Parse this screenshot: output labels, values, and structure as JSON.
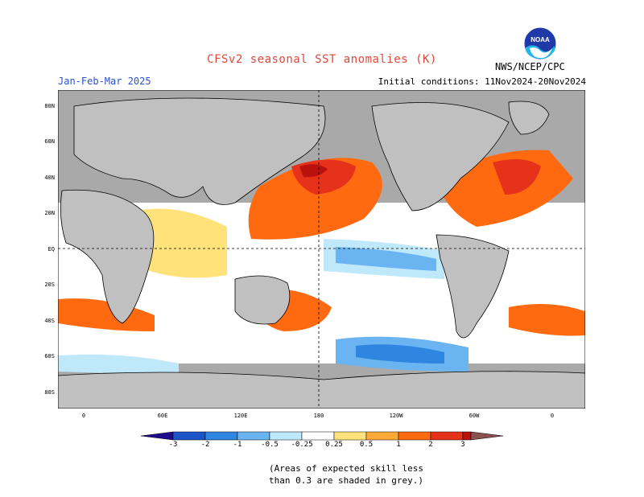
{
  "title": "CFSv2 seasonal SST anomalies (K)",
  "season": "Jan-Feb-Mar 2025",
  "initial_conditions": "Initial conditions: 11Nov2024-20Nov2024",
  "agency": "NWS/NCEP/CPC",
  "logo_text": "NOAA",
  "lat_labels": [
    "80N",
    "60N",
    "40N",
    "20N",
    "EQ",
    "20S",
    "40S",
    "60S",
    "80S"
  ],
  "lon_labels": [
    "0",
    "60E",
    "120E",
    "180",
    "120W",
    "60W",
    "0"
  ],
  "colorbar": {
    "labels": [
      "-3",
      "-2",
      "-1",
      "-0.5",
      "-0.25",
      "0.25",
      "0.5",
      "1",
      "2",
      "3"
    ],
    "colors": [
      "#1e0a8c",
      "#1c54c8",
      "#2f86e0",
      "#6bb4f2",
      "#bfe9fb",
      "#ffffff",
      "#ffe27a",
      "#ffaa36",
      "#ff6a10",
      "#e6311b",
      "#b9120e",
      "#8b5050"
    ]
  },
  "note": [
    "(Areas of expected skill less",
    "than 0.3 are shaded in grey.)"
  ],
  "colors": {
    "land": "#c0c0c0",
    "skill_grey": "#a9a9a9",
    "title": "#e0483a",
    "season": "#2c4fd0"
  }
}
